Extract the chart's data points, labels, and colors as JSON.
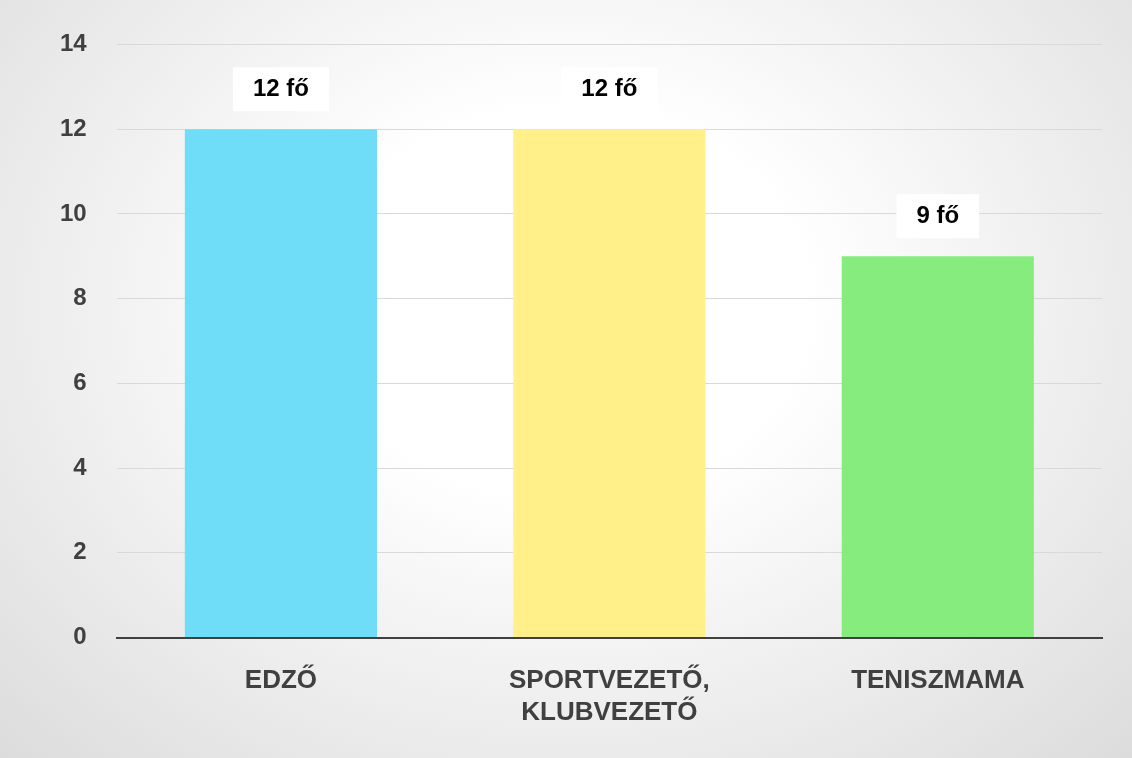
{
  "chart_data": {
    "type": "bar",
    "categories": [
      "EDZŐ",
      "SPORTVEZETŐ, KLUBVEZETŐ",
      "TENISZMAMA"
    ],
    "values": [
      12,
      12,
      9
    ],
    "colors": [
      "#6fdcf8",
      "#fff08a",
      "#86ec7e"
    ],
    "value_labels": [
      "12 fő",
      "12 fő",
      "9 fő"
    ],
    "ylim": [
      0,
      14
    ],
    "yticks": [
      0,
      2,
      4,
      6,
      8,
      10,
      12,
      14
    ],
    "grid": "y",
    "legend": false
  }
}
